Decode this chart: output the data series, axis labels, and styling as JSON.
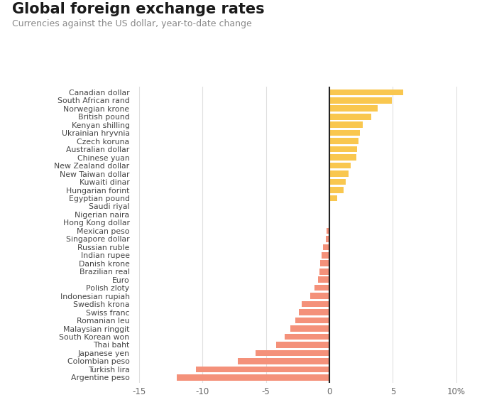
{
  "title": "Global foreign exchange rates",
  "subtitle": "Currencies against the US dollar, year-to-date change",
  "currencies": [
    "Canadian dollar",
    "South African rand",
    "Norwegian krone",
    "British pound",
    "Kenyan shilling",
    "Ukrainian hryvnia",
    "Czech koruna",
    "Australian dollar",
    "Chinese yuan",
    "New Zealand dollar",
    "New Taiwan dollar",
    "Kuwaiti dinar",
    "Hungarian forint",
    "Egyptian pound",
    "Saudi riyal",
    "Nigerian naira",
    "Hong Kong dollar",
    "Mexican peso",
    "Singapore dollar",
    "Russian ruble",
    "Indian rupee",
    "Danish krone",
    "Brazilian real",
    "Euro",
    "Polish zloty",
    "Indonesian rupiah",
    "Swedish krona",
    "Swiss franc",
    "Romanian leu",
    "Malaysian ringgit",
    "South Korean won",
    "Thai baht",
    "Japanese yen",
    "Colombian peso",
    "Turkish lira",
    "Argentine peso"
  ],
  "values": [
    5.8,
    4.9,
    3.8,
    3.3,
    2.6,
    2.4,
    2.3,
    2.2,
    2.1,
    1.7,
    1.5,
    1.3,
    1.1,
    0.6,
    0.0,
    0.0,
    0.0,
    -0.2,
    -0.3,
    -0.5,
    -0.6,
    -0.7,
    -0.8,
    -0.9,
    -1.2,
    -1.5,
    -2.2,
    -2.4,
    -2.7,
    -3.1,
    -3.5,
    -4.2,
    -5.8,
    -7.2,
    -10.5,
    -12.0
  ],
  "positive_color": "#F9C74F",
  "negative_color": "#F4917A",
  "xlim": [
    -15.5,
    10.5
  ],
  "xticks": [
    -15,
    -10,
    -5,
    0,
    5,
    10
  ],
  "xticklabels": [
    "-15",
    "-10",
    "-5",
    "0",
    "5",
    "10%"
  ],
  "background_color": "#ffffff",
  "grid_color": "#e0e0e0",
  "title_fontsize": 15,
  "subtitle_fontsize": 9,
  "label_fontsize": 7.8,
  "tick_fontsize": 8.5,
  "zero_line_color": "#222222"
}
